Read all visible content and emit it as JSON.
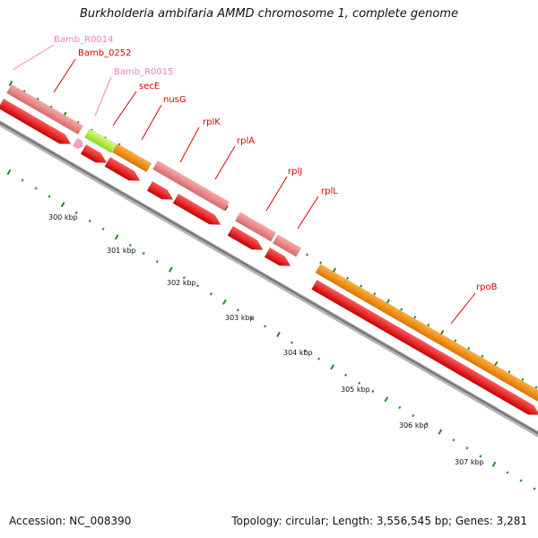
{
  "title": "Burkholderia ambifaria AMMD chromosome 1, complete genome",
  "footer": {
    "accession": "Accession: NC_008390",
    "topology": "Topology: circular; Length: 3,556,545 bp; Genes: 3,281"
  },
  "colors": {
    "backbone": "#888888",
    "cds_forward": "#ff0000",
    "gene": "#f08080",
    "rrna_like": "#ff8c00",
    "trna_like": "#adff2f",
    "pseudo": "#ff69b4",
    "tick": "#228b22",
    "label_red": "#dd0000",
    "label_pink": "#f080c0"
  },
  "map": {
    "tick_labels": [
      "300 kbp",
      "301 kbp",
      "302 kbp",
      "303 kbp",
      "304 kbp",
      "305 kbp",
      "306 kbp",
      "307 kbp"
    ],
    "features": [
      {
        "name": "Bamb_R0014",
        "kind": "pseudo"
      },
      {
        "name": "Bamb_0252",
        "kind": "gene"
      },
      {
        "name": "Bamb_R0015",
        "kind": "pseudo"
      },
      {
        "name": "secE",
        "kind": "gene"
      },
      {
        "name": "nusG",
        "kind": "gene"
      },
      {
        "name": "rplK",
        "kind": "gene"
      },
      {
        "name": "rplA",
        "kind": "gene"
      },
      {
        "name": "rplJ",
        "kind": "gene"
      },
      {
        "name": "rplL",
        "kind": "gene"
      },
      {
        "name": "rpoB",
        "kind": "gene"
      }
    ]
  }
}
